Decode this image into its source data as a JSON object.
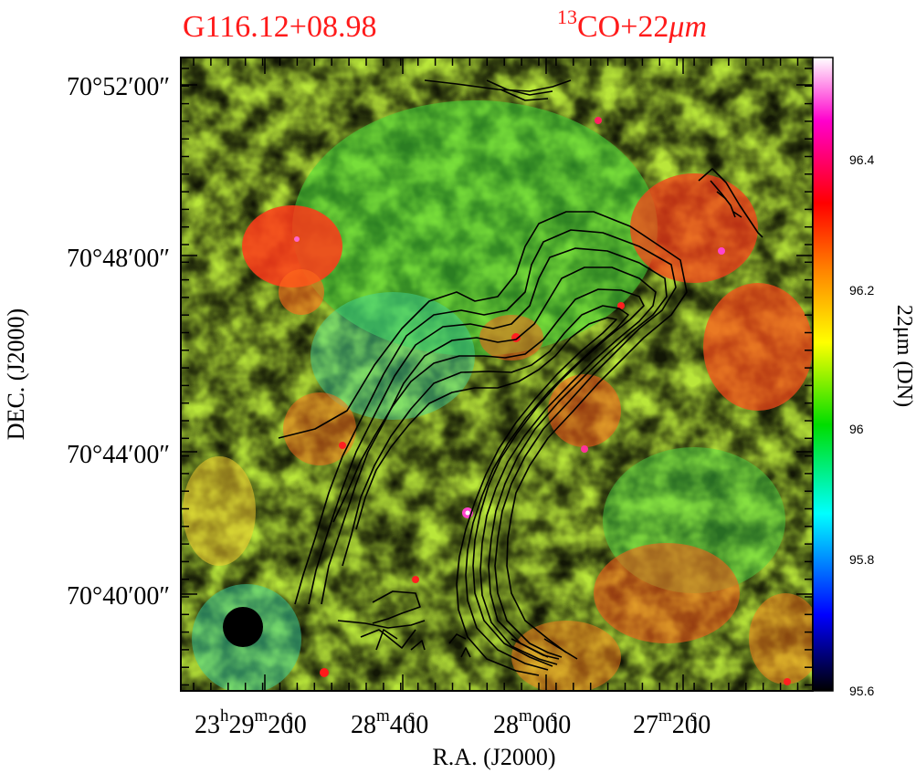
{
  "title": {
    "source": "G116.12+08.98",
    "tracer_prefix": "13",
    "tracer": "CO+22",
    "tracer_unit": "μm"
  },
  "axes": {
    "xlabel": "R.A.  (J2000)",
    "ylabel": "DEC.  (J2000)",
    "ra_ticks": [
      {
        "h": "23",
        "hu": "h",
        "m": "29",
        "mu": "m",
        "s": "20",
        "su": "s",
        "frac": ".0"
      },
      {
        "m": "28",
        "mu": "m",
        "s": "40",
        "su": "s",
        "frac": ".0"
      },
      {
        "m": "28",
        "mu": "m",
        "s": "00",
        "su": "s",
        "frac": ".0"
      },
      {
        "m": "27",
        "mu": "m",
        "s": "20",
        "su": "s",
        "frac": ".0"
      }
    ],
    "dec_ticks": [
      "70°52′00″",
      "70°48′00″",
      "70°44′00″",
      "70°40′00″"
    ]
  },
  "colorbar": {
    "title": "22μm  (DN)",
    "tick_labels": [
      "96.4",
      "96.2",
      "96",
      "95.8",
      "95.6"
    ],
    "min": 95.6,
    "max": 96.55,
    "colors": [
      "#000000",
      "#0000ff",
      "#00ffff",
      "#00dd00",
      "#ffff00",
      "#ff8800",
      "#ff0000",
      "#ff00cc",
      "#ffffff"
    ]
  },
  "image": {
    "background_colormap": [
      "#22dd33",
      "#66e23a",
      "#c8ec3c",
      "#f3e83b",
      "#ffb02a",
      "#ff5a18"
    ]
  }
}
